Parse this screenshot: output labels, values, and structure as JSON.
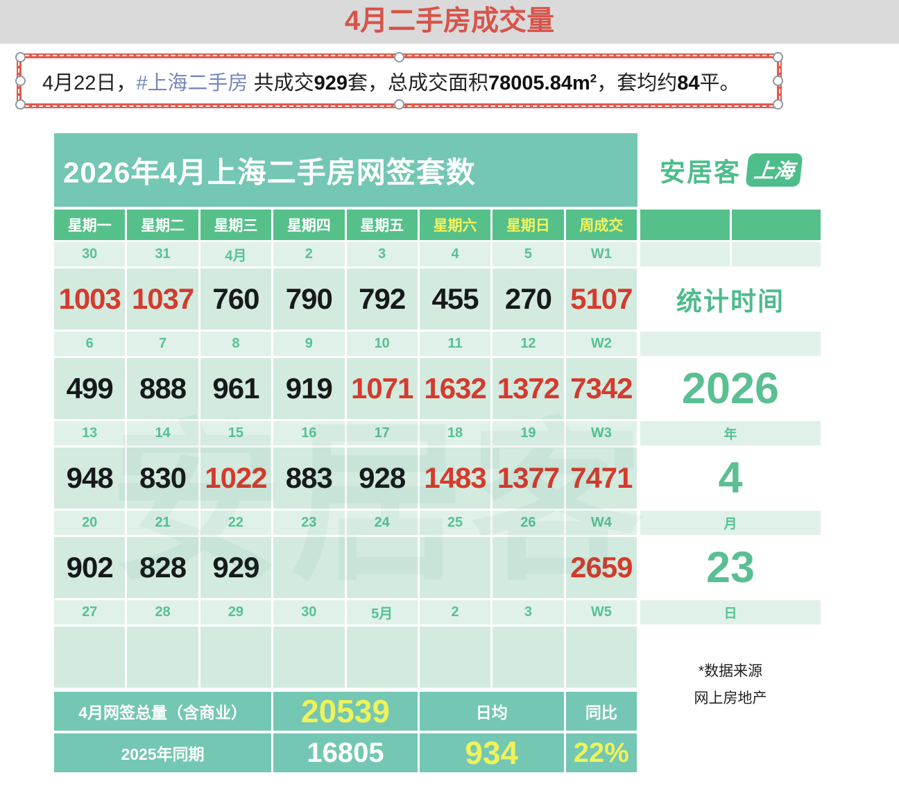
{
  "page_title": "4月二手房成交量",
  "note_box": {
    "prefix": "4月22日，",
    "hashtag": "#上海二手房",
    "mid1": " 共成交",
    "bold1": "929",
    "mid2": "套，总成交面积",
    "bold2": "78005.84",
    "unit": "m",
    "sup": "2",
    "mid3": "，套均约",
    "bold3": "84",
    "tail": "平。"
  },
  "table": {
    "banner_title": "2026年4月上海二手房网签套数",
    "logo": {
      "brand": "安居客",
      "badge": "上海"
    },
    "watermark": "安居客",
    "weekdays": [
      {
        "label": "星期一",
        "weekend": false
      },
      {
        "label": "星期二",
        "weekend": false
      },
      {
        "label": "星期三",
        "weekend": false
      },
      {
        "label": "星期四",
        "weekend": false
      },
      {
        "label": "星期五",
        "weekend": false
      },
      {
        "label": "星期六",
        "weekend": true
      },
      {
        "label": "星期日",
        "weekend": true
      },
      {
        "label": "周成交",
        "weekend": true
      }
    ],
    "weeks": [
      {
        "dates": [
          "30",
          "31",
          "4月",
          "2",
          "3",
          "4",
          "5",
          "W1"
        ],
        "values": [
          {
            "t": "1003",
            "red": true
          },
          {
            "t": "1037",
            "red": true
          },
          {
            "t": "760",
            "red": false
          },
          {
            "t": "790",
            "red": false
          },
          {
            "t": "792",
            "red": false
          },
          {
            "t": "455",
            "red": false
          },
          {
            "t": "270",
            "red": false
          },
          {
            "t": "5107",
            "red": true
          }
        ]
      },
      {
        "dates": [
          "6",
          "7",
          "8",
          "9",
          "10",
          "11",
          "12",
          "W2"
        ],
        "values": [
          {
            "t": "499",
            "red": false
          },
          {
            "t": "888",
            "red": false
          },
          {
            "t": "961",
            "red": false
          },
          {
            "t": "919",
            "red": false
          },
          {
            "t": "1071",
            "red": true
          },
          {
            "t": "1632",
            "red": true
          },
          {
            "t": "1372",
            "red": true
          },
          {
            "t": "7342",
            "red": true
          }
        ]
      },
      {
        "dates": [
          "13",
          "14",
          "15",
          "16",
          "17",
          "18",
          "19",
          "W3"
        ],
        "values": [
          {
            "t": "948",
            "red": false
          },
          {
            "t": "830",
            "red": false
          },
          {
            "t": "1022",
            "red": true
          },
          {
            "t": "883",
            "red": false
          },
          {
            "t": "928",
            "red": false
          },
          {
            "t": "1483",
            "red": true
          },
          {
            "t": "1377",
            "red": true
          },
          {
            "t": "7471",
            "red": true
          }
        ]
      },
      {
        "dates": [
          "20",
          "21",
          "22",
          "23",
          "24",
          "25",
          "26",
          "W4"
        ],
        "values": [
          {
            "t": "902",
            "red": false
          },
          {
            "t": "828",
            "red": false
          },
          {
            "t": "929",
            "red": false
          },
          {
            "t": "",
            "red": false
          },
          {
            "t": "",
            "red": false
          },
          {
            "t": "",
            "red": false
          },
          {
            "t": "",
            "red": false
          },
          {
            "t": "2659",
            "red": true
          }
        ]
      },
      {
        "dates": [
          "27",
          "28",
          "29",
          "30",
          "5月",
          "2",
          "3",
          "W5"
        ],
        "values": [
          {
            "t": "",
            "red": false
          },
          {
            "t": "",
            "red": false
          },
          {
            "t": "",
            "red": false
          },
          {
            "t": "",
            "red": false
          },
          {
            "t": "",
            "red": false
          },
          {
            "t": "",
            "red": false
          },
          {
            "t": "",
            "red": false
          },
          {
            "t": "",
            "red": false
          }
        ]
      }
    ],
    "summary": {
      "row1_label": "4月网签总量（含商业）",
      "row1_total": "20539",
      "row1_daily_label": "日均",
      "row1_yoy_label": "同比",
      "row2_label": "2025年同期",
      "row2_prev": "16805",
      "row2_daily": "934",
      "row2_yoy": "22%"
    }
  },
  "stats_panel": {
    "title": "统计时间",
    "year": "2026",
    "year_label": "年",
    "month": "4",
    "month_label": "月",
    "day": "23",
    "day_label": "日",
    "source_line1": "*数据来源",
    "source_line2": "网上房地产"
  },
  "colors": {
    "title_red": "#d6544a",
    "box_border_red": "#e15a4e",
    "hashtag_blue": "#7587be",
    "banner_teal": "#73c7b3",
    "header_green": "#56c08b",
    "cell_light_green": "#d3eadf",
    "band_light_green": "#e0f1e9",
    "accent_green": "#4cbd8b",
    "value_red": "#d53a2c",
    "highlight_yellow": "#eff25b"
  }
}
